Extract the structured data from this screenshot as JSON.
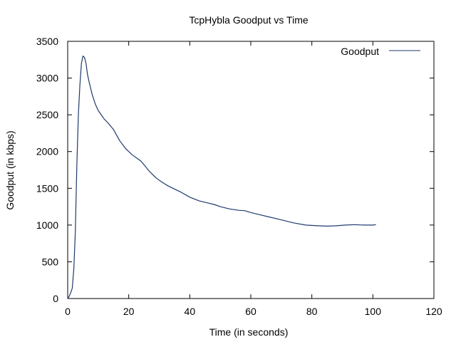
{
  "chart_data": {
    "type": "line",
    "title": "TcpHybla Goodput vs Time",
    "xlabel": "Time (in seconds)",
    "ylabel": "Goodput (in kbps)",
    "xlim": [
      0,
      120
    ],
    "ylim": [
      0,
      3500
    ],
    "x_ticks": [
      0,
      20,
      40,
      60,
      80,
      100,
      120
    ],
    "y_ticks": [
      0,
      500,
      1000,
      1500,
      2000,
      2500,
      3000,
      3500
    ],
    "grid": false,
    "legend_position": "top-right",
    "series": [
      {
        "name": "Goodput",
        "color": "#1f3a6e",
        "x": [
          0.0,
          0.5,
          1.0,
          1.5,
          2.0,
          2.5,
          3.0,
          3.5,
          4.0,
          4.5,
          5.0,
          5.5,
          6.0,
          6.5,
          7.0,
          8.0,
          9.0,
          10.0,
          11.0,
          12.0,
          13.0,
          14.0,
          15.0,
          17.0,
          19.0,
          21.0,
          23.0,
          24.0,
          25.0,
          27.0,
          29.0,
          31.0,
          33.0,
          35.0,
          37.0,
          40.0,
          43.0,
          46.0,
          48.0,
          50.0,
          53.0,
          56.0,
          58.0,
          60.0,
          63.0,
          66.0,
          70.0,
          74.0,
          78.0,
          82.0,
          85.0,
          88.0,
          91.0,
          94.0,
          97.0,
          100.0,
          101.0
        ],
        "y": [
          0,
          30,
          80,
          140,
          400,
          900,
          1800,
          2500,
          2900,
          3200,
          3300,
          3280,
          3200,
          3050,
          2950,
          2780,
          2650,
          2560,
          2500,
          2440,
          2400,
          2350,
          2300,
          2150,
          2040,
          1960,
          1900,
          1870,
          1820,
          1720,
          1640,
          1580,
          1530,
          1490,
          1450,
          1380,
          1330,
          1300,
          1280,
          1250,
          1220,
          1200,
          1195,
          1170,
          1140,
          1110,
          1070,
          1030,
          1000,
          990,
          985,
          990,
          1000,
          1005,
          1000,
          1000,
          1005
        ]
      }
    ]
  }
}
